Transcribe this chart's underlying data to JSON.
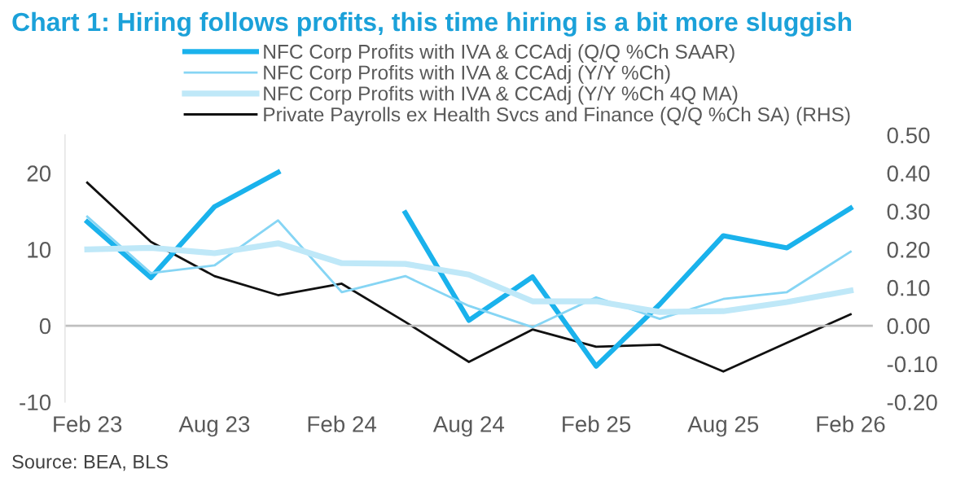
{
  "chart_data": {
    "type": "line",
    "title": "Chart 1: Hiring follows profits, this time hiring is a bit more sluggish",
    "categories": [
      "Feb 23",
      null,
      "Aug 23",
      null,
      "Feb 24",
      null,
      "Aug 24",
      null,
      "Feb 25",
      null,
      "Aug 25",
      null,
      "Feb 26"
    ],
    "series": [
      {
        "name": "NFC Corp Profits with IVA & CCAdj (Q/Q %Ch SAAR)",
        "color": "#1ab2ec",
        "values": [
          13.6,
          6.3,
          15.6,
          20.1,
          null,
          14.8,
          0.7,
          6.4,
          -5.3,
          2.8,
          11.8,
          10.2,
          15.4
        ]
      },
      {
        "name": "NFC Corp Profits with IVA & CCAdj (Y/Y %Ch)",
        "color": "#86d5f4",
        "values": [
          14.3,
          6.9,
          7.9,
          13.8,
          4.4,
          6.5,
          2.6,
          -0.2,
          3.7,
          0.9,
          3.5,
          4.4,
          9.7
        ]
      },
      {
        "name": "NFC Corp Profits with IVA & CCAdj (Y/Y %Ch 4Q MA)",
        "color": "#bfe8f8",
        "values": [
          10,
          10.2,
          9.5,
          10.8,
          8.2,
          8.1,
          6.7,
          3.2,
          3.2,
          1.8,
          1.9,
          3.1,
          4.6
        ]
      },
      {
        "name": "Private Payrolls ex Health Svcs and Finance (Q/Q %Ch SA) (RHS)",
        "color": "#111111",
        "axis": "y2",
        "values": [
          0.375,
          0.22,
          0.13,
          0.08,
          0.11,
          0.01,
          -0.095,
          -0.01,
          -0.055,
          -0.05,
          -0.12,
          -0.045,
          0.03
        ]
      }
    ],
    "ylim": [
      -10,
      25
    ],
    "yticks": [
      -10,
      0,
      10,
      20
    ],
    "y2lim": [
      -0.2,
      0.5
    ],
    "y2ticks": [
      {
        "value": -0.2,
        "label": "-0.20"
      },
      {
        "value": -0.1,
        "label": "-0.10"
      },
      {
        "value": 0,
        "label": "0.00"
      },
      {
        "value": 0.1,
        "label": "0.10"
      },
      {
        "value": 0.2,
        "label": "0.20"
      },
      {
        "value": 0.3,
        "label": "0.30"
      },
      {
        "value": 0.4,
        "label": "0.40"
      },
      {
        "value": 0.5,
        "label": "0.50"
      }
    ],
    "ref_lines": [
      {
        "axis": "y",
        "value": 0,
        "color": "#bfbfbf"
      }
    ],
    "legend": "top",
    "grid": false,
    "annotations": [
      "Source: BEA, BLS"
    ]
  }
}
